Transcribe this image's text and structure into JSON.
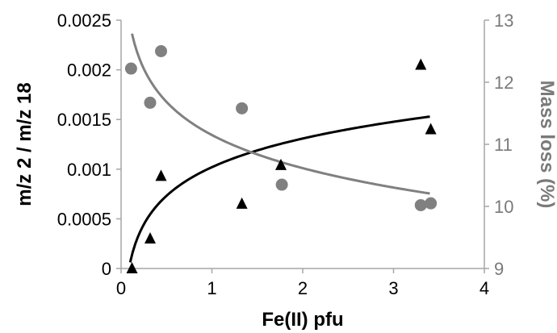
{
  "chart_data": {
    "type": "scatter",
    "xlabel": "Fe(II) pfu",
    "ylabel_left": "m/z 2 / m/z 18",
    "ylabel_right": "Mass loss (%)",
    "xlim": [
      0,
      4
    ],
    "ylim_left": [
      0,
      0.0025
    ],
    "ylim_right": [
      9,
      13
    ],
    "x_ticks": [
      "0",
      "1",
      "2",
      "3",
      "4"
    ],
    "y_left_ticks": [
      "0",
      "0.0005",
      "0.001",
      "0.0015",
      "0.002",
      "0.0025"
    ],
    "y_right_ticks": [
      "9",
      "10",
      "11",
      "12",
      "13"
    ],
    "grid": false,
    "colors": {
      "primary": "#000000",
      "secondary": "#808080",
      "axis_right": "#7a7a7a"
    },
    "series": [
      {
        "axis": "left",
        "marker": "triangle",
        "color": "#000000",
        "points": [
          {
            "x": 0.12,
            "y": 0.0
          },
          {
            "x": 0.32,
            "y": 0.0003
          },
          {
            "x": 0.44,
            "y": 0.00093
          },
          {
            "x": 1.33,
            "y": 0.00065
          },
          {
            "x": 1.76,
            "y": 0.00104
          },
          {
            "x": 3.3,
            "y": 0.00205
          },
          {
            "x": 3.41,
            "y": 0.0014
          }
        ],
        "trend": {
          "kind": "log",
          "x_start": 0.1,
          "x_end": 3.4,
          "a": 0.000416,
          "b": 0.00102
        }
      },
      {
        "axis": "right",
        "marker": "circle",
        "color": "#808080",
        "points": [
          {
            "x": 0.11,
            "y": 12.22
          },
          {
            "x": 0.32,
            "y": 11.67
          },
          {
            "x": 0.44,
            "y": 12.5
          },
          {
            "x": 1.33,
            "y": 11.58
          },
          {
            "x": 1.77,
            "y": 10.35
          },
          {
            "x": 3.3,
            "y": 10.02
          },
          {
            "x": 3.41,
            "y": 10.05
          }
        ],
        "trend": {
          "kind": "log",
          "x_start": 0.12,
          "x_end": 3.4,
          "a": -0.77,
          "b": 11.15
        }
      }
    ]
  }
}
